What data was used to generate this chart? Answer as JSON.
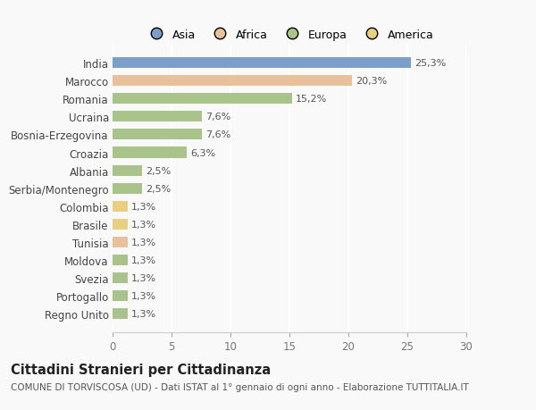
{
  "categories": [
    "India",
    "Marocco",
    "Romania",
    "Ucraina",
    "Bosnia-Erzegovina",
    "Croazia",
    "Albania",
    "Serbia/Montenegro",
    "Colombia",
    "Brasile",
    "Tunisia",
    "Moldova",
    "Svezia",
    "Portogallo",
    "Regno Unito"
  ],
  "values": [
    25.3,
    20.3,
    15.2,
    7.6,
    7.6,
    6.3,
    2.5,
    2.5,
    1.3,
    1.3,
    1.3,
    1.3,
    1.3,
    1.3,
    1.3
  ],
  "labels": [
    "25,3%",
    "20,3%",
    "15,2%",
    "7,6%",
    "7,6%",
    "6,3%",
    "2,5%",
    "2,5%",
    "1,3%",
    "1,3%",
    "1,3%",
    "1,3%",
    "1,3%",
    "1,3%",
    "1,3%"
  ],
  "colors": [
    "#7b9fc9",
    "#e8c09a",
    "#a8c48a",
    "#a8c48a",
    "#a8c48a",
    "#a8c48a",
    "#a8c48a",
    "#a8c48a",
    "#e8d080",
    "#e8d080",
    "#e8c09a",
    "#a8c48a",
    "#a8c48a",
    "#a8c48a",
    "#a8c48a"
  ],
  "legend_labels": [
    "Asia",
    "Africa",
    "Europa",
    "America"
  ],
  "legend_colors": [
    "#7b9fc9",
    "#e8c09a",
    "#a8c48a",
    "#e8d080"
  ],
  "title": "Cittadini Stranieri per Cittadinanza",
  "subtitle": "COMUNE DI TORVISCOSA (UD) - Dati ISTAT al 1° gennaio di ogni anno - Elaborazione TUTTITALIA.IT",
  "xlim": [
    0,
    30
  ],
  "xticks": [
    0,
    5,
    10,
    15,
    20,
    25,
    30
  ],
  "background_color": "#f9f9f9",
  "bar_height": 0.6,
  "label_fontsize": 8,
  "ytick_fontsize": 8.5,
  "xtick_fontsize": 8.5,
  "title_fontsize": 10.5,
  "subtitle_fontsize": 7.5
}
